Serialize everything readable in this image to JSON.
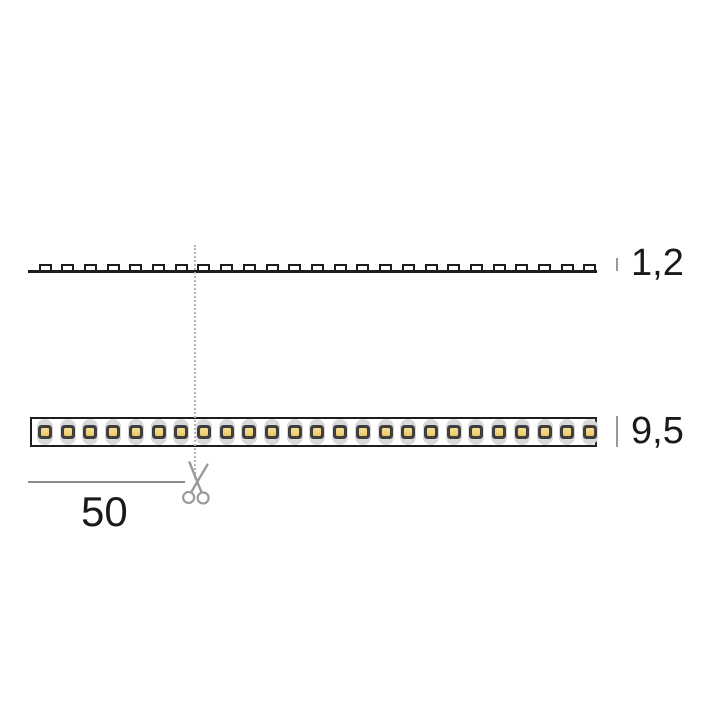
{
  "labels": {
    "thickness": "1,2",
    "width": "9,5",
    "cut_length": "50"
  },
  "profile_view": {
    "led_count": 25
  },
  "top_view": {
    "led_count": 25
  },
  "icons": [
    {
      "name": "scissors-icon",
      "meaning": "cut here"
    }
  ],
  "colors": {
    "background": "#ffffff",
    "line": "#1d1d1d",
    "led_pad": "#d9d9d9",
    "led_body": "#3f3f3f",
    "led_chip": "#ecc766",
    "led_chip_top": "#f6e096",
    "tick": "#9a9a9a",
    "cut_line": "#b5b5b5",
    "dimension_line": "#8c8c8c",
    "scissors": "#9a9a9a",
    "text": "#1a1a1a"
  }
}
